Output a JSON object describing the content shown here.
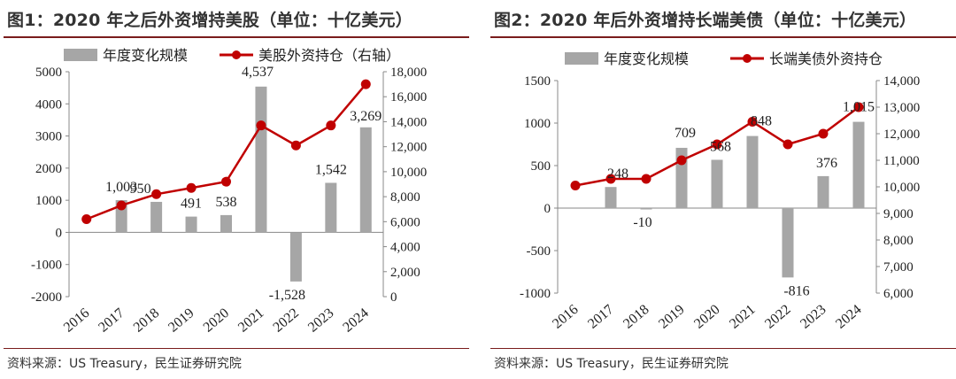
{
  "charts": [
    {
      "title": "图1：2020 年之后外资增持美股（单位：十亿美元）",
      "source": "资料来源：US Treasury，民生证券研究院",
      "chart_data": {
        "type": "bar",
        "title": "图1：2020 年之后外资增持美股（单位：十亿美元）",
        "categories": [
          "2016",
          "2017",
          "2018",
          "2019",
          "2020",
          "2021",
          "2022",
          "2023",
          "2024"
        ],
        "series": [
          {
            "name": "年度变化规模",
            "type": "bar",
            "axis": "left",
            "color": "#a6a6a6",
            "values": [
              null,
              1003,
              950,
              491,
              538,
              4537,
              -1528,
              1542,
              3269
            ],
            "labels": [
              "",
              "1,003",
              "950",
              "491",
              "538",
              "4,537",
              "-1,528",
              "1,542",
              "3,269"
            ]
          },
          {
            "name": "美股外资持仓（右轴）",
            "type": "line",
            "axis": "right",
            "color": "#c00000",
            "values": [
              6200,
              7300,
              8200,
              8700,
              9200,
              13700,
              12100,
              13700,
              17000
            ]
          }
        ],
        "y_left": {
          "min": -2000,
          "max": 5000,
          "step": 1000,
          "ticks": [
            "-2000",
            "-1000",
            "0",
            "1000",
            "2000",
            "3000",
            "4000",
            "5000"
          ]
        },
        "y_right": {
          "min": 0,
          "max": 18000,
          "step": 2000,
          "ticks": [
            "0",
            "2,000",
            "4,000",
            "6,000",
            "8,000",
            "10,000",
            "12,000",
            "14,000",
            "16,000",
            "18,000"
          ]
        },
        "legend": "top"
      }
    },
    {
      "title": "图2：2020 年后外资增持长端美债（单位：十亿美元）",
      "source": "资料来源：US Treasury，民生证券研究院",
      "chart_data": {
        "type": "bar",
        "title": "图2：2020 年后外资增持长端美债（单位：十亿美元）",
        "categories": [
          "2016",
          "2017",
          "2018",
          "2019",
          "2020",
          "2021",
          "2022",
          "2023",
          "2024"
        ],
        "series": [
          {
            "name": "年度变化规模",
            "type": "bar",
            "axis": "left",
            "color": "#a6a6a6",
            "values": [
              null,
              248,
              -10,
              709,
              568,
              848,
              -816,
              376,
              1015
            ],
            "labels": [
              "",
              "248",
              "-10",
              "709",
              "568",
              "848",
              "-816",
              "376",
              "1,015"
            ]
          },
          {
            "name": "长端美债外资持仓",
            "type": "line",
            "axis": "right",
            "color": "#c00000",
            "values": [
              10050,
              10300,
              10300,
              11000,
              11600,
              12450,
              11600,
              12000,
              13000
            ]
          }
        ],
        "y_left": {
          "min": -1000,
          "max": 1500,
          "step": 500,
          "ticks": [
            "-1000",
            "-500",
            "0",
            "500",
            "1000",
            "1500"
          ]
        },
        "y_right": {
          "min": 6000,
          "max": 14000,
          "step": 1000,
          "ticks": [
            "6,000",
            "7,000",
            "8,000",
            "9,000",
            "10,000",
            "11,000",
            "12,000",
            "13,000",
            "14,000"
          ]
        },
        "legend": "top"
      }
    }
  ]
}
